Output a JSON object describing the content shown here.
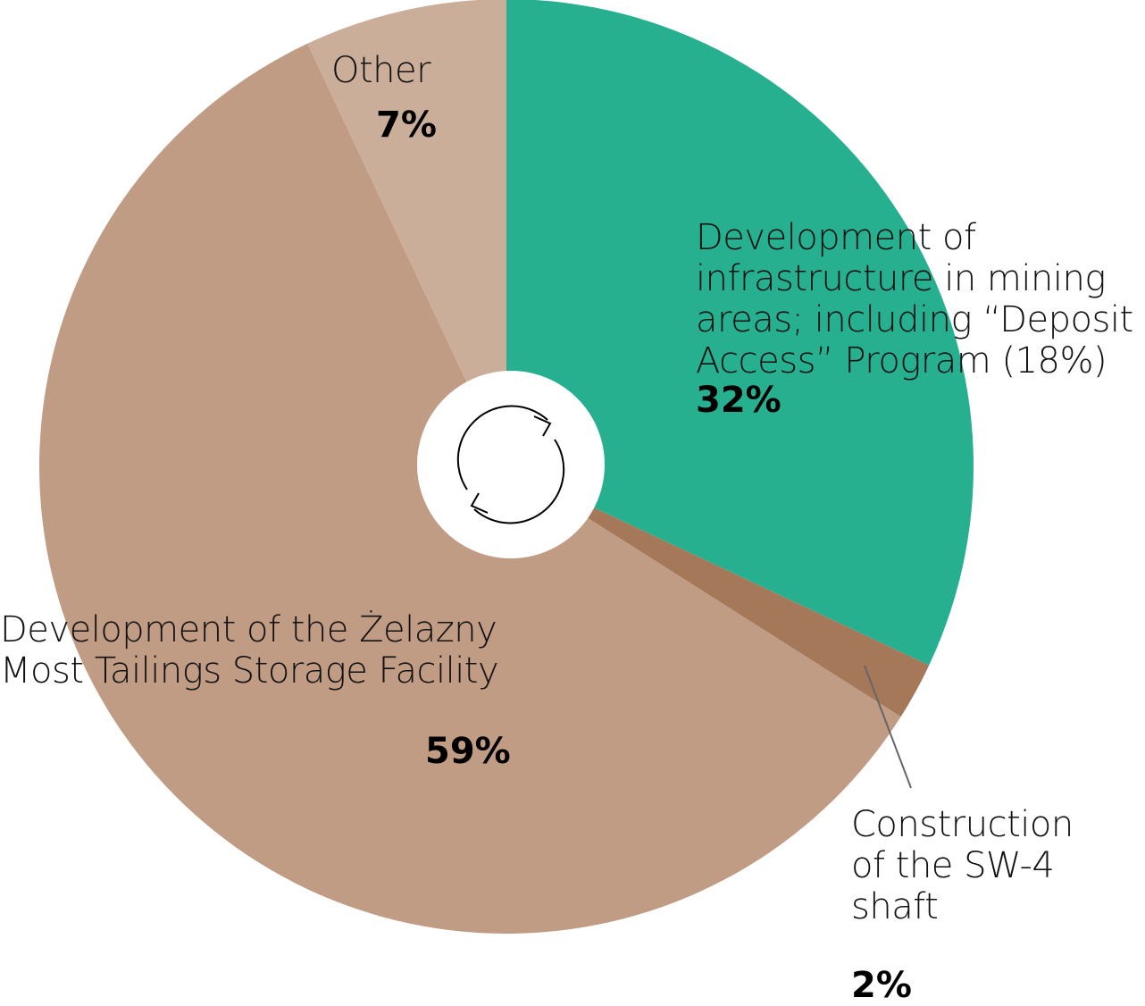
{
  "chart_data": {
    "type": "pie",
    "donut_center_icon": "refresh-icon",
    "slices": [
      {
        "label": "Development of infrastructure in mining areas; including “Deposit Access” Program (18%)",
        "value": 32,
        "value_label": "32%",
        "color": "#27b08f"
      },
      {
        "label": "Construction of the SW-4 shaft",
        "value": 2,
        "value_label": "2%",
        "color": "#a47858"
      },
      {
        "label": "Development of the Żelazny Most Tailings Storage Facility",
        "value": 59,
        "value_label": "59%",
        "color": "#c19c84"
      },
      {
        "label": "Other",
        "value": 7,
        "value_label": "7%",
        "color": "#cbae99"
      }
    ]
  }
}
